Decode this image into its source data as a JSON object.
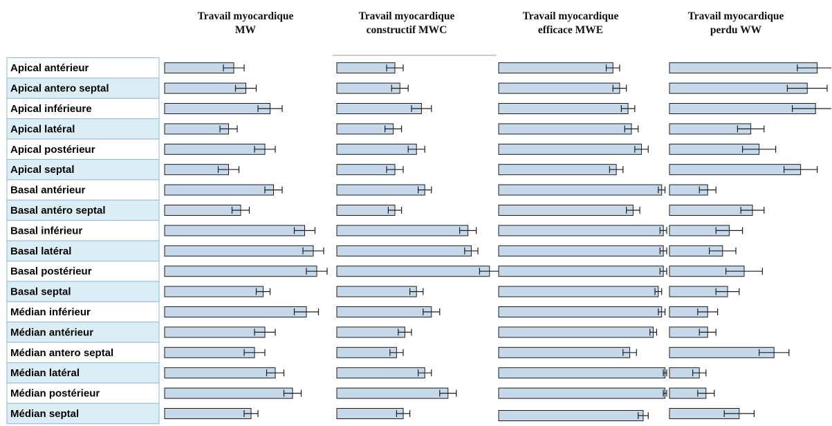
{
  "chart_data": {
    "type": "bar",
    "orientation": "horizontal",
    "bar_color": "#c6d9ea",
    "bar_edge_color": "#1a1a1a",
    "row_fill_alternate": "#dbeef5",
    "row_border_color": "#8fbad3",
    "categories": [
      "Apical antérieur",
      "Apical antero septal",
      "Apical inférieure",
      "Apical latéral",
      "Apical postérieur",
      "Apical septal",
      "Basal antérieur",
      "Basal antéro septal",
      "Basal inférieur",
      "Basal latéral",
      "Basal postérieur",
      "Basal septal",
      "Médian inférieur",
      "Médian antérieur",
      "Médian antero septal",
      "Médian latéral",
      "Médian postérieur",
      "Médian septal"
    ],
    "panels": [
      {
        "title_line1": "Travail myocardique",
        "title_line2": "MW",
        "values": [
          0.4,
          0.47,
          0.61,
          0.37,
          0.58,
          0.37,
          0.63,
          0.44,
          0.81,
          0.86,
          0.88,
          0.57,
          0.82,
          0.58,
          0.52,
          0.64,
          0.74,
          0.5
        ],
        "errors": [
          0.06,
          0.06,
          0.07,
          0.05,
          0.06,
          0.06,
          0.05,
          0.05,
          0.06,
          0.06,
          0.06,
          0.04,
          0.07,
          0.06,
          0.06,
          0.05,
          0.05,
          0.04
        ]
      },
      {
        "title_line1": "Travail myocardique",
        "title_line2": "constructif MWC",
        "values": [
          0.35,
          0.38,
          0.51,
          0.34,
          0.48,
          0.35,
          0.53,
          0.35,
          0.79,
          0.81,
          0.92,
          0.48,
          0.57,
          0.41,
          0.36,
          0.53,
          0.67,
          0.4
        ],
        "errors": [
          0.05,
          0.05,
          0.06,
          0.05,
          0.05,
          0.05,
          0.04,
          0.04,
          0.05,
          0.04,
          0.06,
          0.04,
          0.05,
          0.04,
          0.04,
          0.04,
          0.05,
          0.04
        ]
      },
      {
        "title_line1": "Travail myocardique",
        "title_line2": "efficace MWE",
        "values": [
          0.68,
          0.72,
          0.77,
          0.79,
          0.85,
          0.7,
          0.97,
          0.8,
          0.98,
          0.98,
          0.98,
          0.95,
          0.97,
          0.92,
          0.78,
          0.99,
          0.99,
          0.86
        ],
        "errors": [
          0.04,
          0.04,
          0.04,
          0.04,
          0.04,
          0.04,
          0.02,
          0.04,
          0.02,
          0.02,
          0.02,
          0.02,
          0.02,
          0.02,
          0.04,
          0.01,
          0.01,
          0.03
        ]
      },
      {
        "title_line1": "Travail myocardique",
        "title_line2": "perdu WW",
        "values": [
          0.89,
          0.83,
          0.88,
          0.49,
          0.54,
          0.79,
          0.23,
          0.5,
          0.36,
          0.32,
          0.45,
          0.35,
          0.23,
          0.23,
          0.63,
          0.18,
          0.22,
          0.42
        ],
        "errors": [
          0.12,
          0.12,
          0.14,
          0.08,
          0.1,
          0.1,
          0.05,
          0.07,
          0.08,
          0.08,
          0.11,
          0.07,
          0.06,
          0.05,
          0.09,
          0.04,
          0.05,
          0.09
        ]
      }
    ]
  }
}
